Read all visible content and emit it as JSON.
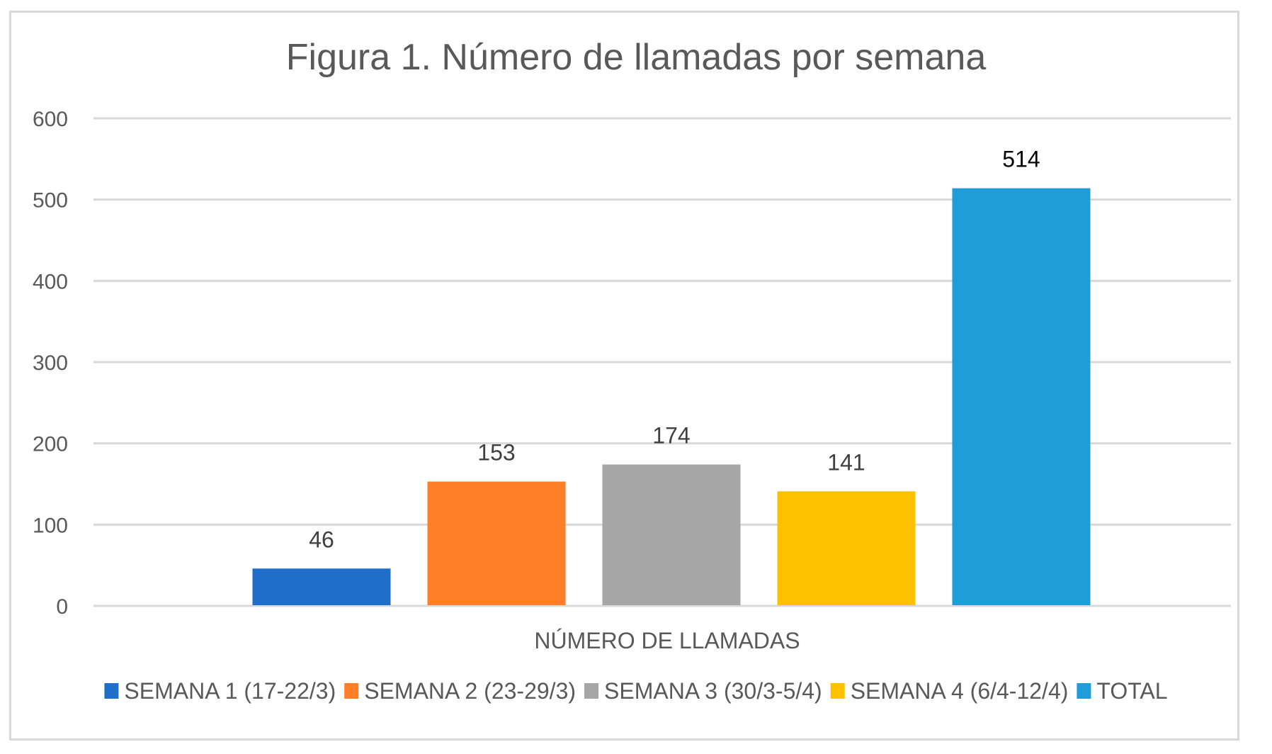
{
  "chart_data": {
    "type": "bar",
    "title": "Figura 1. Número de llamadas por semana",
    "xlabel": "",
    "ylabel": "",
    "categories": [
      "NÚMERO DE LLAMADAS"
    ],
    "series": [
      {
        "name": "SEMANA 1 (17-22/3)",
        "values": [
          46
        ],
        "color": "#1f6fc8"
      },
      {
        "name": "SEMANA 2 (23-29/3)",
        "values": [
          153
        ],
        "color": "#fe7f27"
      },
      {
        "name": "SEMANA 3 (30/3-5/4)",
        "values": [
          174
        ],
        "color": "#a6a6a6"
      },
      {
        "name": "SEMANA 4 (6/4-12/4)",
        "values": [
          141
        ],
        "color": "#fdc100"
      },
      {
        "name": "TOTAL",
        "values": [
          514
        ],
        "color": "#1e9dd9"
      }
    ],
    "ylim": [
      0,
      600
    ],
    "yticks": [
      0,
      100,
      200,
      300,
      400,
      500,
      600
    ],
    "ytick_labels": [
      "0",
      "100",
      "200",
      "300",
      "400",
      "500",
      "600"
    ],
    "data_labels": [
      "46",
      "153",
      "174",
      "141",
      "514"
    ],
    "grid": true,
    "gridline_color": "#d9d9d9",
    "legend_position": "bottom"
  }
}
